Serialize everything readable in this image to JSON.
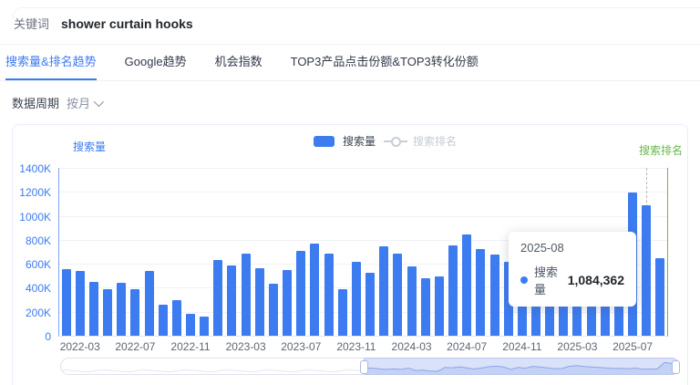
{
  "header": {
    "label": "关键词",
    "keyword": "shower curtain hooks"
  },
  "tabs": [
    {
      "label": "搜索量&排名趋势",
      "active": true
    },
    {
      "label": "Google趋势",
      "active": false
    },
    {
      "label": "机会指数",
      "active": false
    },
    {
      "label": "TOP3产品点击份额&TOP3转化份额",
      "active": false
    }
  ],
  "period": {
    "label": "数据周期",
    "value": "按月"
  },
  "legend": {
    "search_volume": "搜索量",
    "search_rank": "搜索排名"
  },
  "axes": {
    "left_title": "搜索量",
    "right_title": "搜索排名",
    "y_ticks": [
      "1400K",
      "1200K",
      "1000K",
      "800K",
      "600K",
      "400K",
      "200K",
      "0"
    ]
  },
  "tooltip": {
    "title": "2025-08",
    "series": "搜索量",
    "value": "1,084,362"
  },
  "colors": {
    "bar_blue": "#3D7BF0",
    "rank_green": "#69B84C",
    "disabled_legend": "#c6cbd4",
    "slider_selection": "#d9e2f9"
  },
  "chart_data": {
    "type": "bar",
    "title": "",
    "x": [
      "2022-02",
      "2022-03",
      "2022-04",
      "2022-05",
      "2022-06",
      "2022-07",
      "2022-08",
      "2022-09",
      "2022-10",
      "2022-11",
      "2022-12",
      "2023-01",
      "2023-02",
      "2023-03",
      "2023-04",
      "2023-05",
      "2023-06",
      "2023-07",
      "2023-08",
      "2023-09",
      "2023-10",
      "2023-11",
      "2023-12",
      "2024-01",
      "2024-02",
      "2024-03",
      "2024-04",
      "2024-05",
      "2024-06",
      "2024-07",
      "2024-08",
      "2024-09",
      "2024-10",
      "2024-11",
      "2024-12",
      "2025-01",
      "2025-02",
      "2025-03",
      "2025-04",
      "2025-05",
      "2025-06",
      "2025-07",
      "2025-08",
      "2025-09"
    ],
    "series": [
      {
        "name": "搜索量",
        "values": [
          553000,
          543000,
          452000,
          389000,
          444000,
          389000,
          538000,
          256000,
          294000,
          185000,
          162000,
          629000,
          586000,
          687000,
          561000,
          434000,
          548000,
          710000,
          769000,
          682000,
          388000,
          614000,
          525000,
          748000,
          682000,
          576000,
          477000,
          494000,
          751000,
          845000,
          725000,
          675000,
          619000,
          560000,
          500000,
          520000,
          470000,
          540000,
          421000,
          426000,
          426000,
          1194000,
          1084362,
          647000
        ]
      },
      {
        "name": "搜索排名",
        "values": [],
        "disabled": true
      }
    ],
    "x_tick_labels": [
      "2022-03",
      "2022-07",
      "2022-11",
      "2023-03",
      "2023-07",
      "2023-11",
      "2024-03",
      "2024-07",
      "2024-11",
      "2025-03",
      "2025-07"
    ],
    "ylabel": "搜索量",
    "ylabel_right": "搜索排名",
    "ylim": [
      0,
      1400000
    ],
    "grid": true,
    "legend_position": "top",
    "highlight_x": "2025-08",
    "tooltip_value": 1084362
  }
}
